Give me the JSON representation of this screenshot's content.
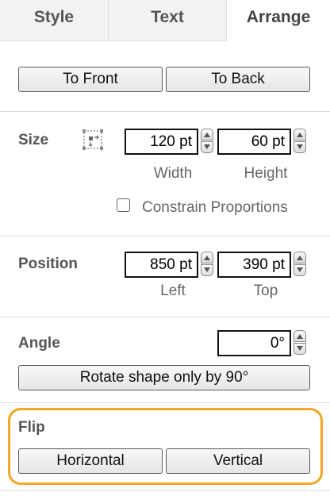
{
  "tabs": [
    {
      "label": "Style"
    },
    {
      "label": "Text"
    },
    {
      "label": "Arrange"
    }
  ],
  "order": {
    "to_front": "To Front",
    "to_back": "To Back"
  },
  "size": {
    "label": "Size",
    "width_value": "120 pt",
    "height_value": "60 pt",
    "width_label": "Width",
    "height_label": "Height",
    "constrain_label": "Constrain Proportions",
    "constrain_checked": false
  },
  "position": {
    "label": "Position",
    "left_value": "850 pt",
    "top_value": "390 pt",
    "left_label": "Left",
    "top_label": "Top"
  },
  "angle": {
    "label": "Angle",
    "value": "0°",
    "rotate_label": "Rotate shape only by 90°"
  },
  "flip": {
    "label": "Flip",
    "horizontal": "Horizontal",
    "vertical": "Vertical"
  },
  "colors": {
    "highlight": "#f5a623"
  }
}
